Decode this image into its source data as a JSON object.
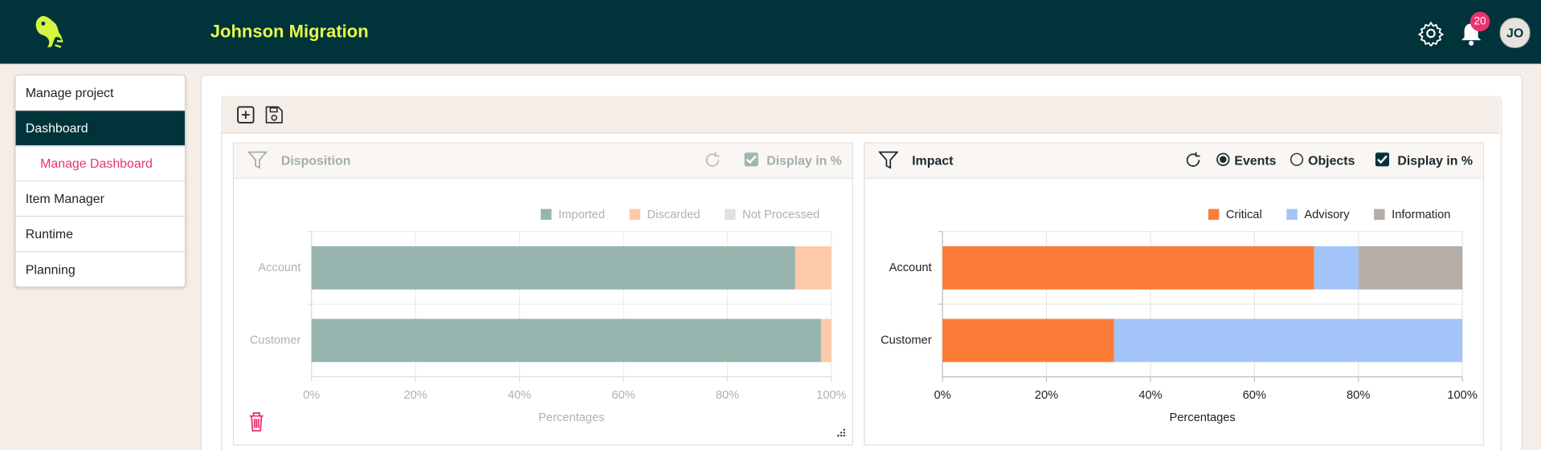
{
  "header": {
    "title": "Johnson Migration",
    "notifications": 20,
    "avatar": "JO"
  },
  "sidebar": {
    "items": [
      "Manage project",
      "Dashboard",
      "Manage Dashboard",
      "Item Manager",
      "Runtime",
      "Planning"
    ]
  },
  "panels": [
    {
      "options": [
        "Display in %"
      ]
    },
    {
      "options": [
        "Events",
        "Objects",
        "Display in %"
      ]
    }
  ],
  "chart_data": [
    {
      "type": "bar",
      "orientation": "horizontal",
      "stacked": true,
      "title": "Disposition",
      "categories": [
        "Account",
        "Customer"
      ],
      "series": [
        {
          "name": "Imported",
          "color": "#97b5ae",
          "values": [
            93,
            98
          ]
        },
        {
          "name": "Discarded",
          "color": "#fcc9a9",
          "values": [
            7,
            2
          ]
        },
        {
          "name": "Not Processed",
          "color": "#e2dfdc",
          "values": [
            0,
            0
          ]
        }
      ],
      "xlim": [
        0,
        100
      ],
      "xticks": [
        {
          "value": 0,
          "label": "0%"
        },
        {
          "value": 20,
          "label": "20%"
        },
        {
          "value": 40,
          "label": "40%"
        },
        {
          "value": 60,
          "label": "60%"
        },
        {
          "value": 80,
          "label": "80%"
        },
        {
          "value": 100,
          "label": "100%"
        }
      ],
      "xlabel": "Percentages",
      "grid": true,
      "legend": "top-right"
    },
    {
      "type": "bar",
      "orientation": "horizontal",
      "stacked": true,
      "title": "Impact",
      "categories": [
        "Account",
        "Customer"
      ],
      "series": [
        {
          "name": "Critical",
          "color": "#fd7c38",
          "values": [
            71.5,
            33
          ]
        },
        {
          "name": "Advisory",
          "color": "#a2c4f9",
          "values": [
            8.5,
            67
          ]
        },
        {
          "name": "Information",
          "color": "#b5ada8",
          "values": [
            20,
            0
          ]
        }
      ],
      "xlim": [
        0,
        100
      ],
      "xticks": [
        {
          "value": 0,
          "label": "0%"
        },
        {
          "value": 20,
          "label": "20%"
        },
        {
          "value": 40,
          "label": "40%"
        },
        {
          "value": 60,
          "label": "60%"
        },
        {
          "value": 80,
          "label": "80%"
        },
        {
          "value": 100,
          "label": "100%"
        }
      ],
      "xlabel": "Percentages",
      "grid": true,
      "legend": "top-right"
    }
  ]
}
